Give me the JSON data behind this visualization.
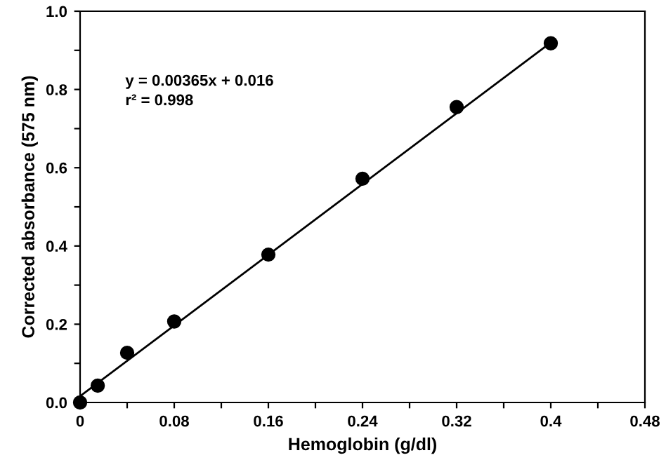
{
  "chart_data": {
    "type": "scatter",
    "xlabel": "Hemoglobin (g/dl)",
    "ylabel": "Corrected absorbance (575 nm)",
    "annotations": [
      "y = 0.00365x + 0.016",
      "r² = 0.998"
    ],
    "series": [
      {
        "color": "#000000",
        "marker": "circle",
        "x": [
          0,
          0.015,
          0.04,
          0.08,
          0.16,
          0.24,
          0.32,
          0.4
        ],
        "values": [
          0.0,
          0.043,
          0.127,
          0.207,
          0.378,
          0.572,
          0.755,
          0.918
        ]
      },
      {
        "type": "line",
        "color": "#000000",
        "marker": "none",
        "line_style": "solid",
        "x": [
          0,
          0.4
        ],
        "values": [
          0.016,
          0.92
        ]
      }
    ],
    "xlim": [
      0,
      0.48
    ],
    "ylim": [
      0,
      1.0
    ],
    "xticks": [
      0,
      {
        "value": 0.04,
        "label": null
      },
      0.08,
      {
        "value": 0.12,
        "label": null
      },
      0.16,
      {
        "value": 0.2,
        "label": null
      },
      0.24,
      {
        "value": 0.28,
        "label": null
      },
      0.32,
      {
        "value": 0.36,
        "label": null
      },
      0.4,
      {
        "value": 0.44,
        "label": null
      },
      0.48
    ],
    "yticks": [
      {
        "value": 0,
        "label": "0.0"
      },
      {
        "value": 0.1,
        "label": null
      },
      0.2,
      {
        "value": 0.3,
        "label": null
      },
      0.4,
      {
        "value": 0.5,
        "label": null
      },
      0.6,
      {
        "value": 0.7,
        "label": null
      },
      0.8,
      {
        "value": 0.9,
        "label": null
      },
      {
        "value": 1.0,
        "label": "1.0"
      }
    ],
    "grid": false
  }
}
